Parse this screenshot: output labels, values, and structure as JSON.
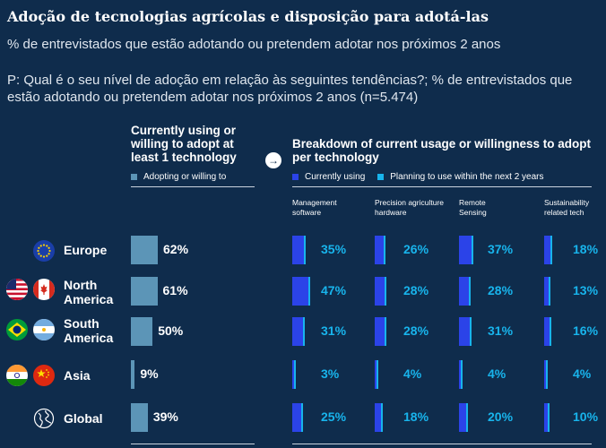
{
  "title": "Adoção de tecnologias agrícolas e disposição para adotá-las",
  "subtitle": "% de entrevistados que estão adotando ou pretendem adotar nos próximos 2 anos",
  "question": "P: Qual é o seu nível de adoção em relação às seguintes tendências?; % de entrevistados que estão adotando ou pretendem adotar nos próximos 2 anos (n=5.474)",
  "colors": {
    "background": "#0f2c4c",
    "adopting": "#5c95b7",
    "current": "#2b43e8",
    "planning": "#18b4ec"
  },
  "left_section": {
    "header": "Currently using or willing to adopt at least 1 technology",
    "legend": "Adopting or willing to"
  },
  "right_section": {
    "header": "Breakdown of current usage or willingness to adopt per technology",
    "legend_current": "Currently using",
    "legend_planning": "Planning to use within the next 2 years"
  },
  "tech_labels": [
    "Management software",
    "Precision agriculture hardware",
    "Remote Sensing",
    "Sustainability related tech"
  ],
  "regions": [
    {
      "name": "Europe",
      "icons": [
        "eu-flag-icon"
      ]
    },
    {
      "name": "North America",
      "icons": [
        "us-flag-icon",
        "canada-flag-icon"
      ]
    },
    {
      "name": "South America",
      "icons": [
        "brazil-flag-icon",
        "argentina-flag-icon"
      ]
    },
    {
      "name": "Asia",
      "icons": [
        "india-flag-icon",
        "china-flag-icon"
      ]
    },
    {
      "name": "Global",
      "icons": [
        "globe-icon"
      ]
    }
  ],
  "chart_data": [
    {
      "type": "bar",
      "orientation": "horizontal",
      "title": "Currently using or willing to adopt at least 1 technology",
      "categories": [
        "Europe",
        "North America",
        "South America",
        "Asia",
        "Global"
      ],
      "series": [
        {
          "name": "Adopting or willing to",
          "values": [
            62,
            61,
            50,
            9,
            39
          ]
        }
      ],
      "labels": [
        "62%",
        "61%",
        "50%",
        "9%",
        "39%"
      ]
    },
    {
      "type": "bar",
      "orientation": "horizontal",
      "title": "Breakdown of current usage or willingness to adopt per technology",
      "categories": [
        "Europe",
        "North America",
        "South America",
        "Asia",
        "Global"
      ],
      "groups": [
        {
          "name": "Management software",
          "values": [
            35,
            47,
            31,
            3,
            25
          ],
          "labels": [
            "35%",
            "47%",
            "31%",
            "3%",
            "25%"
          ]
        },
        {
          "name": "Precision agriculture hardware",
          "values": [
            26,
            28,
            28,
            4,
            18
          ],
          "labels": [
            "26%",
            "28%",
            "28%",
            "4%",
            "18%"
          ]
        },
        {
          "name": "Remote Sensing",
          "values": [
            37,
            28,
            31,
            4,
            20
          ],
          "labels": [
            "37%",
            "28%",
            "31%",
            "4%",
            "20%"
          ]
        },
        {
          "name": "Sustainability related tech",
          "values": [
            18,
            13,
            16,
            4,
            10
          ],
          "labels": [
            "18%",
            "13%",
            "16%",
            "4%",
            "10%"
          ]
        }
      ],
      "series": [
        "Currently using",
        "Planning to use within the next 2 years"
      ]
    }
  ]
}
